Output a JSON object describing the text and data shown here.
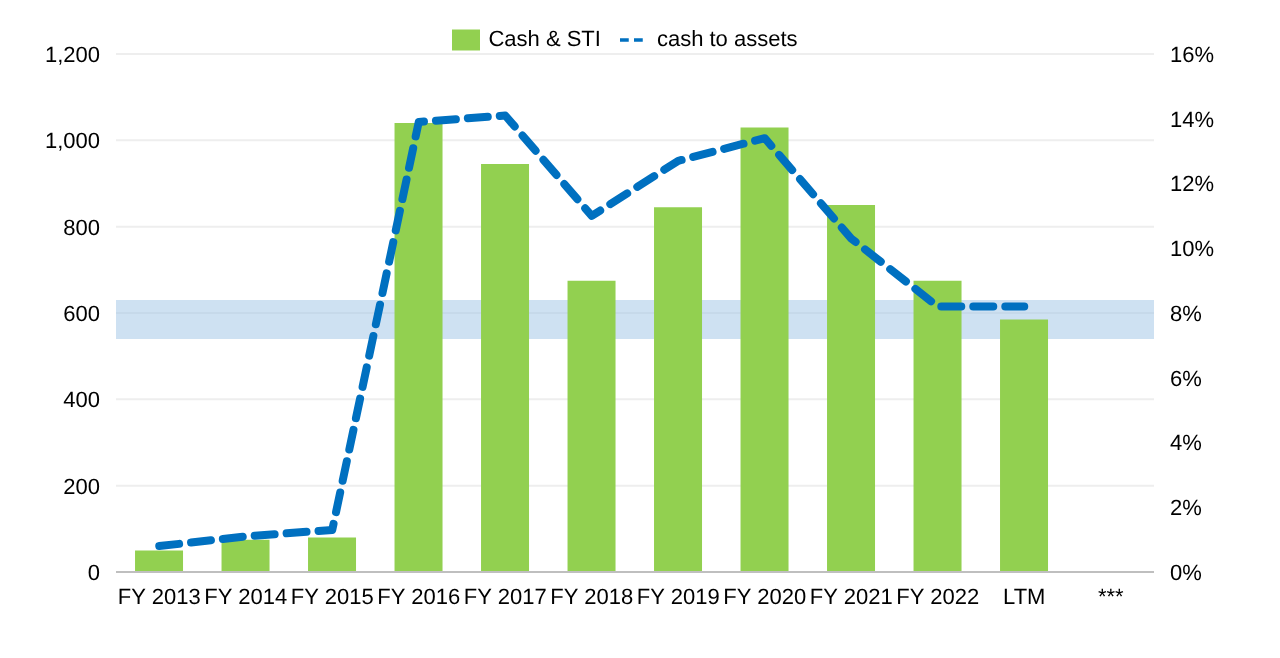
{
  "chart_data": {
    "type": "bar",
    "categories": [
      "FY 2013",
      "FY 2014",
      "FY 2015",
      "FY 2016",
      "FY 2017",
      "FY 2018",
      "FY 2019",
      "FY 2020",
      "FY 2021",
      "FY 2022",
      "LTM",
      "***"
    ],
    "series": [
      {
        "name": "Cash & STI",
        "color": "#92d050",
        "values": [
          50,
          75,
          80,
          1040,
          945,
          675,
          845,
          1030,
          850,
          675,
          585,
          null
        ]
      },
      {
        "name": "cash to assets",
        "type": "line",
        "axis": "y2",
        "color": "#0070c0",
        "line_style": "dashed",
        "values": [
          0.8,
          1.1,
          1.3,
          13.9,
          14.1,
          11.0,
          12.7,
          13.4,
          10.3,
          8.2,
          8.2,
          null
        ]
      }
    ],
    "ylim": [
      0,
      1200
    ],
    "yticks": [
      0,
      {
        "value": 200,
        "label": "200"
      },
      {
        "value": 400,
        "label": "400"
      },
      {
        "value": 600,
        "label": "600"
      },
      {
        "value": 800,
        "label": "800"
      },
      {
        "value": 1000,
        "label": "1,000"
      },
      {
        "value": 1200,
        "label": "1,200"
      }
    ],
    "y2lim": [
      0,
      16
    ],
    "y2ticks": [
      {
        "value": 0,
        "label": "0%"
      },
      {
        "value": 2,
        "label": "2%"
      },
      {
        "value": 4,
        "label": "4%"
      },
      {
        "value": 6,
        "label": "6%"
      },
      {
        "value": 8,
        "label": "8%"
      },
      {
        "value": 10,
        "label": "10%"
      },
      {
        "value": 12,
        "label": "12%"
      },
      {
        "value": 14,
        "label": "14%"
      },
      {
        "value": 16,
        "label": "16%"
      }
    ],
    "bands": [
      {
        "axis": "y2",
        "from": 7.2,
        "to": 8.4,
        "color": "#9dc3e6"
      }
    ],
    "grid": "y",
    "legend": "top",
    "marker": "none"
  }
}
